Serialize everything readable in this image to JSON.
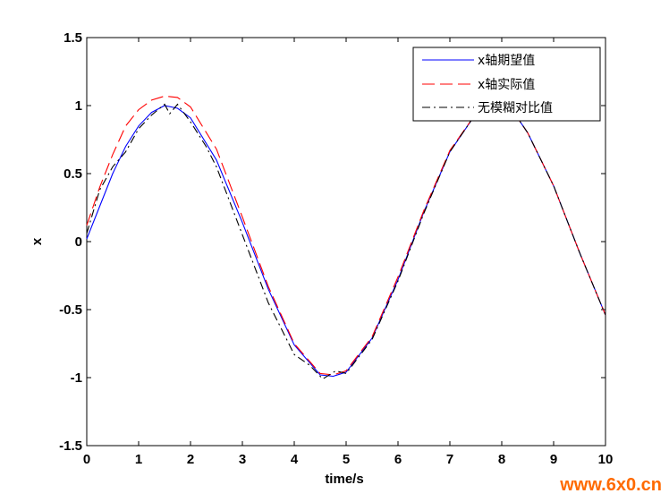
{
  "chart_data": {
    "type": "line",
    "title": "",
    "xlabel": "time/s",
    "ylabel": "x",
    "xlim": [
      0,
      10
    ],
    "ylim": [
      -1.5,
      1.5
    ],
    "xticks": [
      0,
      1,
      2,
      3,
      4,
      5,
      6,
      7,
      8,
      9,
      10
    ],
    "yticks": [
      -1.5,
      -1,
      -0.5,
      0,
      0.5,
      1,
      1.5
    ],
    "xtick_labels": [
      "0",
      "1",
      "2",
      "3",
      "4",
      "5",
      "6",
      "7",
      "8",
      "9",
      "10"
    ],
    "ytick_labels": [
      "-1.5",
      "-1",
      "-0.5",
      "0",
      "0.5",
      "1",
      "1.5"
    ],
    "grid": false,
    "legend_position": "top-right",
    "series": [
      {
        "name": "x轴期望值",
        "color": "#0000ff",
        "style": "solid",
        "x": [
          0,
          0.25,
          0.5,
          0.75,
          1.0,
          1.25,
          1.5,
          1.75,
          2.0,
          2.5,
          3.0,
          3.5,
          4.0,
          4.5,
          4.75,
          5.0,
          5.5,
          6.0,
          6.5,
          7.0,
          7.5,
          7.85,
          8.25,
          8.5,
          9.0,
          9.5,
          10.0
        ],
        "y": [
          0.02,
          0.26,
          0.5,
          0.7,
          0.85,
          0.95,
          1.0,
          0.98,
          0.91,
          0.6,
          0.14,
          -0.35,
          -0.76,
          -0.98,
          -0.99,
          -0.96,
          -0.71,
          -0.28,
          0.22,
          0.66,
          0.94,
          1.0,
          0.94,
          0.8,
          0.41,
          -0.08,
          -0.54
        ]
      },
      {
        "name": "x轴实际值",
        "color": "#ff0000",
        "style": "dashed",
        "x": [
          0,
          0.25,
          0.5,
          0.75,
          1.0,
          1.25,
          1.5,
          1.75,
          2.0,
          2.5,
          3.0,
          3.5,
          4.0,
          4.5,
          4.75,
          5.0,
          5.5,
          6.0,
          6.5,
          7.0,
          7.5,
          7.85,
          8.25,
          8.5,
          9.0,
          9.5,
          10.0
        ],
        "y": [
          0.12,
          0.4,
          0.64,
          0.85,
          0.97,
          1.04,
          1.07,
          1.06,
          0.99,
          0.68,
          0.18,
          -0.33,
          -0.75,
          -0.97,
          -0.98,
          -0.95,
          -0.7,
          -0.26,
          0.23,
          0.67,
          0.94,
          1.0,
          0.94,
          0.8,
          0.41,
          -0.08,
          -0.54
        ]
      },
      {
        "name": "无模糊对比值",
        "color": "#000000",
        "style": "dashdot",
        "x": [
          0,
          0.25,
          0.5,
          0.75,
          1.0,
          1.25,
          1.5,
          1.6,
          1.75,
          2.0,
          2.3,
          2.5,
          3.0,
          3.5,
          4.0,
          4.3,
          4.55,
          4.8,
          5.0,
          5.5,
          6.0,
          6.5,
          7.0,
          7.5,
          7.85,
          8.25,
          8.5,
          9.0,
          9.5,
          10.0
        ],
        "y": [
          0.06,
          0.38,
          0.55,
          0.66,
          0.83,
          0.93,
          1.01,
          0.94,
          1.01,
          0.88,
          0.7,
          0.55,
          0.05,
          -0.45,
          -0.83,
          -0.91,
          -1.01,
          -0.95,
          -0.97,
          -0.72,
          -0.29,
          0.21,
          0.66,
          0.94,
          1.0,
          0.94,
          0.8,
          0.41,
          -0.08,
          -0.54
        ]
      }
    ]
  },
  "watermark": {
    "text": "www.6x0.cn",
    "color": "#ff6a00"
  }
}
